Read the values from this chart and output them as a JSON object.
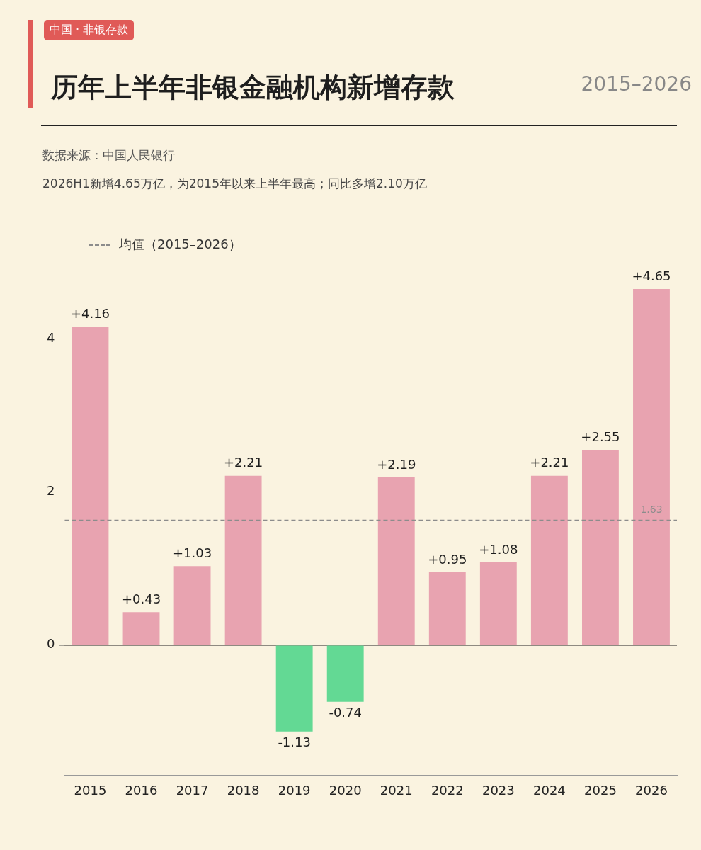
{
  "chart_data": {
    "type": "bar",
    "title": "历年上半年非银金融机构新增存款",
    "subtitle": "2015–2026",
    "annotations": [
      "中国 · 非银存款",
      "数据来源：中国人民银行",
      "2026H1新增4.65万亿，为2015年以来上半年最高；同比多增2.10万亿",
      {
        "text": "1.63",
        "x": "2026",
        "y": 1.63
      }
    ],
    "categories": [
      "2015",
      "2016",
      "2017",
      "2018",
      "2019",
      "2020",
      "2021",
      "2022",
      "2023",
      "2024",
      "2025",
      "2026"
    ],
    "values": [
      4.16,
      0.43,
      1.03,
      2.21,
      -1.13,
      -0.74,
      2.19,
      0.95,
      1.08,
      2.21,
      2.55,
      4.65
    ],
    "colors": [
      "#e8a3b0",
      "#e8a3b0",
      "#e8a3b0",
      "#e8a3b0",
      "#63d994",
      "#63d994",
      "#e8a3b0",
      "#e8a3b0",
      "#e8a3b0",
      "#e8a3b0",
      "#e8a3b0",
      "#e8a3b0"
    ],
    "value_labels": [
      "+4.16",
      "+0.43",
      "+1.03",
      "+2.21",
      "-1.13",
      "-0.74",
      "+2.19",
      "+0.95",
      "+1.08",
      "+2.21",
      "+2.55",
      "+4.65"
    ],
    "ylim": [
      -1.7,
      4.65
    ],
    "yticks": [
      0,
      2,
      4
    ],
    "grid": "y",
    "ref_lines": [
      {
        "axis": "y",
        "value": 1.63,
        "label": "均值（2015–2026）",
        "color": "#8c8c8c",
        "line_style": "dashed"
      }
    ],
    "legend": "top left"
  }
}
